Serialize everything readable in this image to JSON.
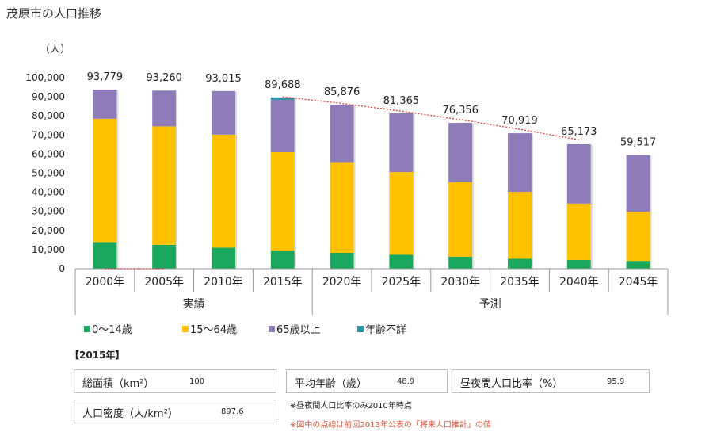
{
  "title": "茂原市の人口推移",
  "chart_data": {
    "type": "bar",
    "stacked": true,
    "unit_label": "（人）",
    "categories": [
      "2000年",
      "2005年",
      "2010年",
      "2015年",
      "2020年",
      "2025年",
      "2030年",
      "2035年",
      "2040年",
      "2045年"
    ],
    "groups": [
      {
        "label": "実績",
        "from": 0,
        "to": 3
      },
      {
        "label": "予測",
        "from": 4,
        "to": 9
      }
    ],
    "series": [
      {
        "name": "0〜14歳",
        "color": "#1aa85e",
        "values": [
          14000,
          12500,
          11000,
          9500,
          8300,
          7300,
          6300,
          5200,
          4600,
          4100
        ]
      },
      {
        "name": "15〜64歳",
        "color": "#ffc000",
        "values": [
          64500,
          62000,
          59200,
          51500,
          47500,
          43300,
          39000,
          35000,
          29500,
          25700
        ]
      },
      {
        "name": "65歳以上",
        "color": "#8e7cb8",
        "values": [
          15279,
          18760,
          22815,
          27388,
          30076,
          30765,
          31056,
          30719,
          31073,
          29717
        ]
      },
      {
        "name": "年齢不詳",
        "color": "#2e96a6",
        "values": [
          0,
          0,
          0,
          1300,
          0,
          0,
          0,
          0,
          0,
          0
        ]
      }
    ],
    "totals": [
      93779,
      93260,
      93015,
      89688,
      85876,
      81365,
      76356,
      70919,
      65173,
      59517
    ],
    "total_labels": [
      "93,779",
      "93,260",
      "93,015",
      "89,688",
      "85,876",
      "81,365",
      "76,356",
      "70,919",
      "65,173",
      "59,517"
    ],
    "previous_projection": {
      "color": "#e03a3a",
      "points": [
        {
          "x": "2000年",
          "y": 0
        },
        {
          "x": "2005年",
          "y": 0
        },
        {
          "x": "2015年",
          "y": 90000
        },
        {
          "x": "2020年",
          "y": 86500
        },
        {
          "x": "2025年",
          "y": 82500
        },
        {
          "x": "2030年",
          "y": 78000
        },
        {
          "x": "2035年",
          "y": 73000
        },
        {
          "x": "2040年",
          "y": 67500
        }
      ]
    },
    "ylim": [
      0,
      100000
    ],
    "yticks": [
      0,
      10000,
      20000,
      30000,
      40000,
      50000,
      60000,
      70000,
      80000,
      90000,
      100000
    ],
    "ytick_labels": [
      "0",
      "10,000",
      "20,000",
      "30,000",
      "40,000",
      "50,000",
      "60,000",
      "70,000",
      "80,000",
      "90,000",
      "100,000"
    ],
    "grid": false,
    "legend_position": "bottom"
  },
  "legend": {
    "items": [
      {
        "label": "0〜14歳",
        "color": "#1aa85e"
      },
      {
        "label": "15〜64歳",
        "color": "#ffc000"
      },
      {
        "label": "65歳以上",
        "color": "#8e7cb8"
      },
      {
        "label": "年齢不詳",
        "color": "#2e96a6"
      }
    ]
  },
  "info": {
    "heading": "【2015年】",
    "area_label": "総面積（km²）",
    "area_value": "100",
    "avg_age_label": "平均年齢（歳）",
    "avg_age_value": "48.9",
    "day_night_label": "昼夜間人口比率（%）",
    "day_night_value": "95.9",
    "density_label": "人口密度（人/km²）",
    "density_value": "897.6",
    "note_day_night": "※昼夜間人口比率のみ2010年時点",
    "note_dotted": "※図中の点線は前回2013年公表の「将来人口推計」の値"
  }
}
